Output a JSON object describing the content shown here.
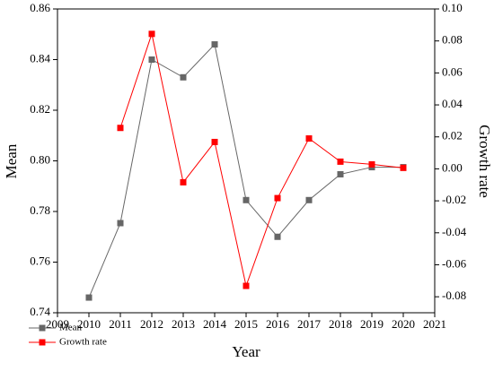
{
  "chart_data": {
    "type": "line",
    "x_label": "Year",
    "y_label": "Mean",
    "y2_label": "Growth rate",
    "x": [
      2010,
      2011,
      2012,
      2013,
      2014,
      2015,
      2016,
      2017,
      2018,
      2019,
      2020
    ],
    "series": [
      {
        "name": "Mean",
        "color": "#666666",
        "values": [
          0.746,
          0.7754,
          0.84,
          0.833,
          0.846,
          0.7845,
          0.77,
          0.7845,
          0.7947,
          0.7975,
          0.7975
        ]
      },
      {
        "name": "Growth rate",
        "color": "#ff0000",
        "axis": "y2",
        "values": [
          null,
          0.0256,
          0.0844,
          -0.0084,
          0.0168,
          -0.0732,
          -0.0183,
          0.019,
          0.0045,
          0.0028,
          0.0006
        ]
      }
    ],
    "xlim": [
      2009,
      2021
    ],
    "xticks": [
      2009,
      2010,
      2011,
      2012,
      2013,
      2014,
      2015,
      2016,
      2017,
      2018,
      2019,
      2020,
      2021
    ],
    "ylim": [
      0.74,
      0.86
    ],
    "yticks": [
      {
        "value": 0.74,
        "label": "0.74"
      },
      {
        "value": 0.76,
        "label": "0.76"
      },
      {
        "value": 0.78,
        "label": "0.78"
      },
      {
        "value": 0.8,
        "label": "0.80"
      },
      {
        "value": 0.82,
        "label": "0.82"
      },
      {
        "value": 0.84,
        "label": "0.84"
      },
      {
        "value": 0.86,
        "label": "0.86"
      }
    ],
    "y2lim": [
      -0.09,
      0.1
    ],
    "y2ticks": [
      {
        "value": -0.08,
        "label": "-0.08"
      },
      {
        "value": -0.06,
        "label": "-0.06"
      },
      {
        "value": -0.04,
        "label": "-0.04"
      },
      {
        "value": -0.02,
        "label": "-0.02"
      },
      {
        "value": 0,
        "label": "0.00"
      },
      {
        "value": 0.02,
        "label": "0.02"
      },
      {
        "value": 0.04,
        "label": "0.04"
      },
      {
        "value": 0.06,
        "label": "0.06"
      },
      {
        "value": 0.08,
        "label": "0.08"
      },
      {
        "value": 0.1,
        "label": "0.10"
      }
    ],
    "legend": "bottom-left"
  }
}
